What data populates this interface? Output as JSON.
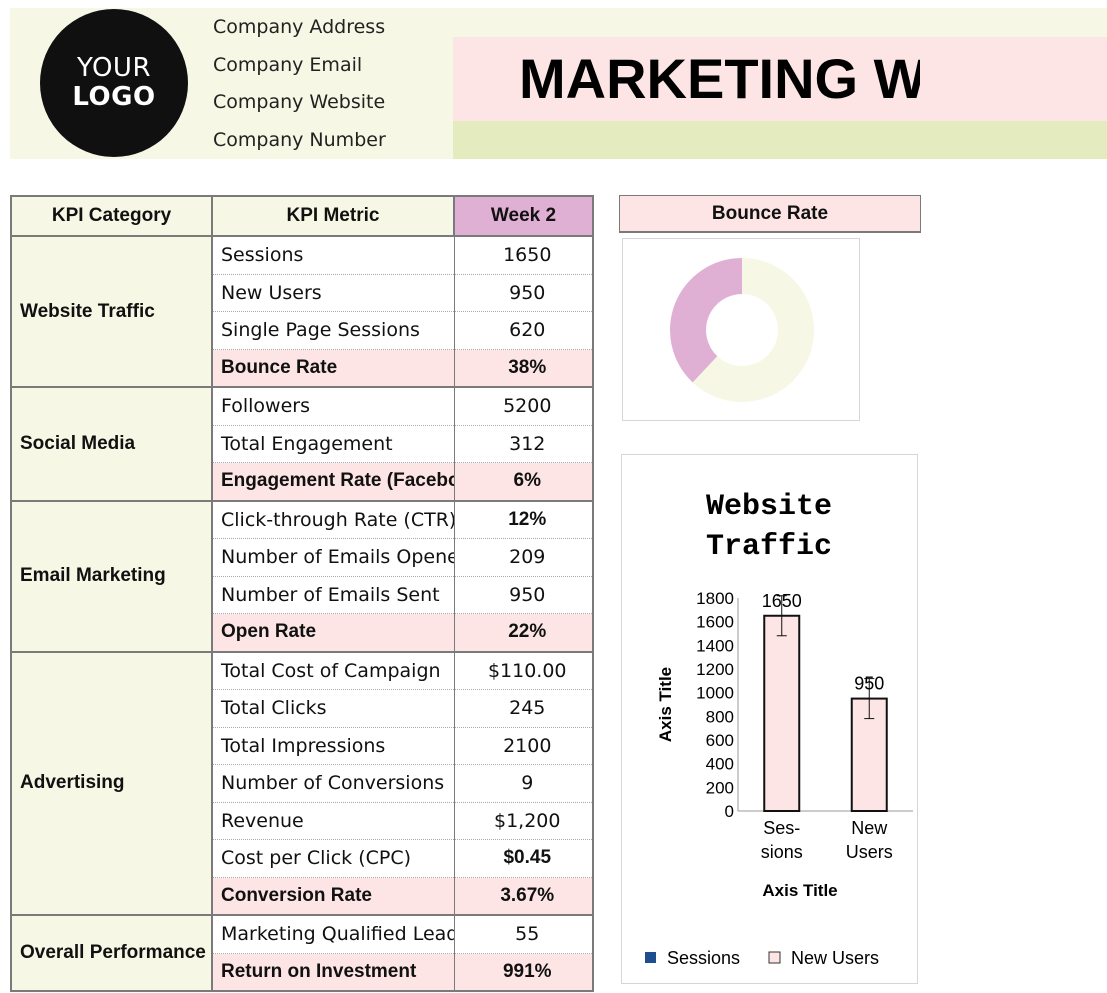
{
  "header": {
    "logo_line1": "YOUR",
    "logo_line2": "LOGO",
    "company_address": "Company Address",
    "company_email": "Company Email",
    "company_website": "Company Website",
    "company_number": "Company Number",
    "title": "MARKETING WEEKLY REPORT"
  },
  "table": {
    "headers": {
      "category": "KPI Category",
      "metric": "KPI Metric",
      "week": "Week 2"
    },
    "groups": [
      {
        "category": "Website Traffic",
        "rows": [
          {
            "metric": "Sessions",
            "value": "1650"
          },
          {
            "metric": "New Users",
            "value": "950"
          },
          {
            "metric": "Single Page Sessions",
            "value": "620"
          },
          {
            "metric": "Bounce Rate",
            "value": "38%"
          }
        ]
      },
      {
        "category": "Social Media",
        "rows": [
          {
            "metric": "Followers",
            "value": "5200"
          },
          {
            "metric": "Total Engagement",
            "value": "312"
          },
          {
            "metric": "Engagement Rate (Facebook)",
            "value": "6%"
          }
        ]
      },
      {
        "category": "Email Marketing",
        "rows": [
          {
            "metric": "Click-through Rate (CTR)",
            "value": "12%"
          },
          {
            "metric": "Number of Emails Opened",
            "value": "209"
          },
          {
            "metric": "Number of Emails Sent",
            "value": "950"
          },
          {
            "metric": "Open Rate",
            "value": "22%"
          }
        ]
      },
      {
        "category": "Advertising",
        "rows": [
          {
            "metric": "Total Cost of Campaign",
            "value": "$110.00"
          },
          {
            "metric": "Total Clicks",
            "value": "245"
          },
          {
            "metric": "Total Impressions",
            "value": "2100"
          },
          {
            "metric": "Number of Conversions",
            "value": "9"
          },
          {
            "metric": "Revenue",
            "value": "$1,200"
          },
          {
            "metric": "Cost per Click (CPC)",
            "value": "$0.45"
          },
          {
            "metric": "Conversion Rate",
            "value": "3.67%"
          }
        ]
      },
      {
        "category": "Overall Performance",
        "rows": [
          {
            "metric": "Marketing Qualified Leads",
            "value": "55"
          },
          {
            "metric": "Return on Investment",
            "value": "991%"
          }
        ]
      }
    ]
  },
  "bounce_panel": {
    "title": "Bounce Rate"
  },
  "colors": {
    "pink": "#fce5e4",
    "cream": "#f6f8e5",
    "green": "#e4ebbf",
    "purple": "#dfb0d3",
    "sessions_legend": "#1f4e8c"
  },
  "chart_data": [
    {
      "type": "pie",
      "donut": true,
      "labels": [
        "Bounce Rate",
        ""
      ],
      "values": [
        38,
        62
      ],
      "colors": [
        "#dfb0d3",
        "#f6f8e5"
      ]
    },
    {
      "type": "bar",
      "title": "Website Traffic",
      "categories": [
        "Ses-sions",
        "New Users"
      ],
      "category_lines": [
        [
          "Ses-",
          "sions"
        ],
        [
          "New",
          "Users"
        ]
      ],
      "values": [
        1650,
        950
      ],
      "data_labels": [
        "1650",
        "950"
      ],
      "error_bars": true,
      "xlabel": "Axis Title",
      "ylabel": "Axis Title",
      "ylim": [
        0,
        1800
      ],
      "yticks": [
        0,
        200,
        400,
        600,
        800,
        1000,
        1200,
        1400,
        1600,
        1800
      ],
      "legend": [
        "Sessions",
        "New Users"
      ],
      "legend_position": "bottom",
      "bar_color": "#fce5e4"
    }
  ]
}
